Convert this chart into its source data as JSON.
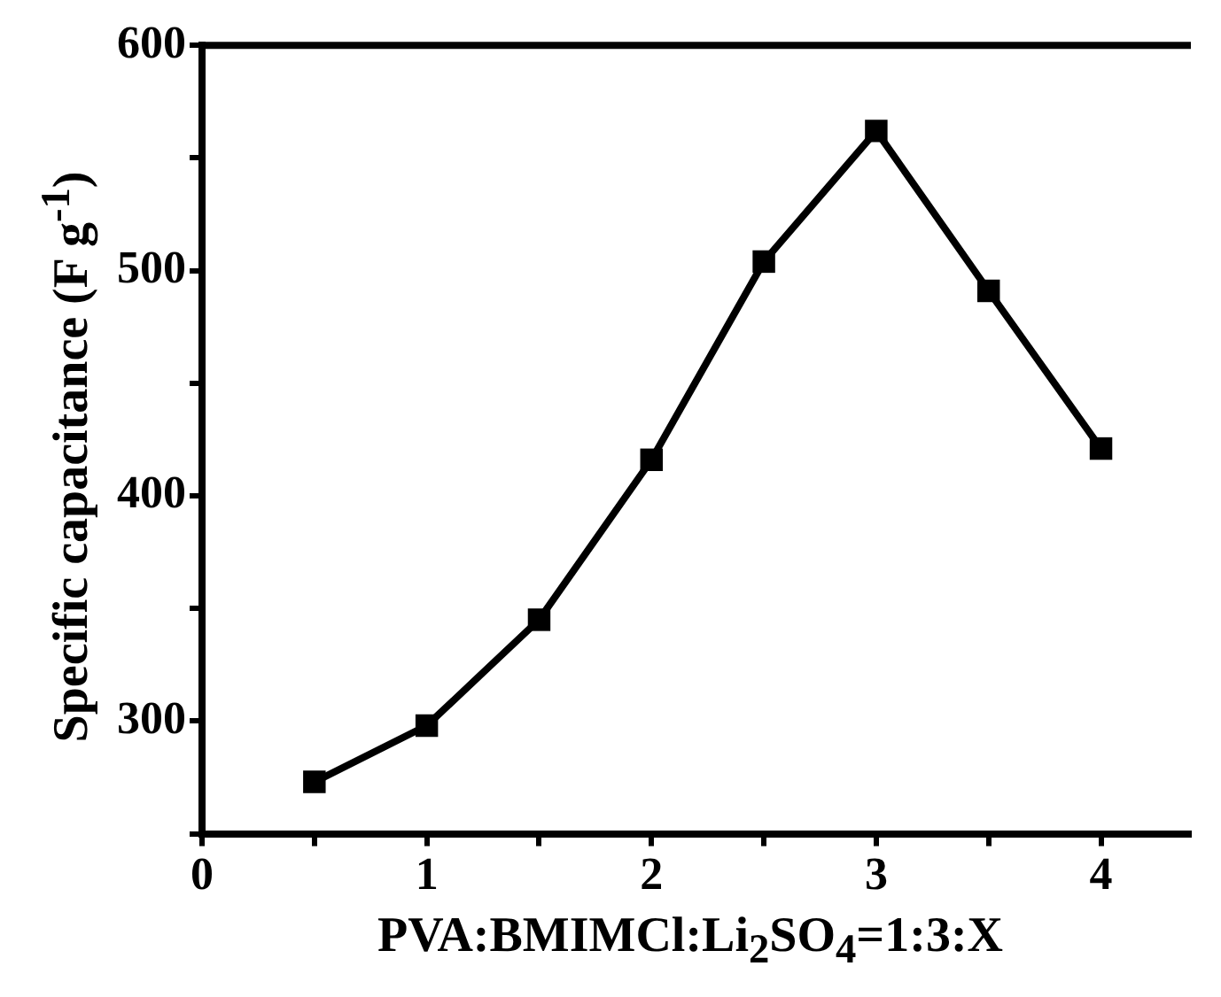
{
  "chart_data": {
    "type": "line",
    "xlabel": "PVA:BMIMCl:Li$_{2}$SO$_{4}$=1:3:X",
    "ylabel": "Specific capacitance (F g$^{-1}$)",
    "x": [
      0.5,
      1,
      1.5,
      2,
      2.5,
      3,
      3.5,
      4
    ],
    "series": [
      {
        "color": "#000000",
        "values": [
          273,
          298,
          345,
          416,
          504,
          562,
          491,
          421
        ]
      }
    ],
    "xlim": [
      0,
      4.4
    ],
    "xticks": [
      0,
      {
        "value": 0.5,
        "label": null
      },
      1,
      {
        "value": 1.5,
        "label": null
      },
      2,
      {
        "value": 2.5,
        "label": null
      },
      3,
      {
        "value": 3.5,
        "label": null
      },
      4
    ],
    "ylim": [
      250,
      600
    ],
    "yticks": [
      {
        "value": 250,
        "label": null
      },
      300,
      {
        "value": 350,
        "label": null
      },
      400,
      {
        "value": 450,
        "label": null
      },
      500,
      {
        "value": 550,
        "label": null
      },
      600
    ],
    "grid": false,
    "legend": false,
    "marker": "square",
    "line_style": "solid"
  }
}
